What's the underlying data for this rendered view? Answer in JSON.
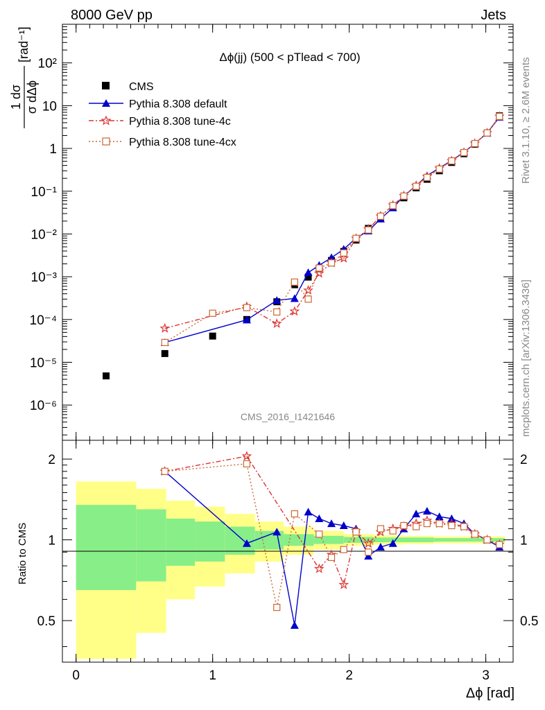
{
  "header": {
    "left": "8000 GeV pp",
    "right": "Jets"
  },
  "plot": {
    "title": "Δϕ(jj) (500 < pTlead < 700)",
    "watermark": "CMS_2016_I1421646",
    "side_top": "Rivet 3.1.10, ≥ 2.6M events",
    "side_bottom": "mcplots.cern.ch [arXiv:1306.3436]",
    "ylabel_top_num": "1 dσ",
    "ylabel_top_den": "σ dΔϕ",
    "ylabel_top_unit": "[rad⁻¹]",
    "ylabel_ratio": "Ratio to CMS",
    "xlabel": "Δϕ [rad]"
  },
  "legend": [
    {
      "label": "CMS",
      "color": "#000000",
      "marker": "square"
    },
    {
      "label": "Pythia 8.308 default",
      "color": "#0000cc",
      "marker": "triangle"
    },
    {
      "label": "Pythia 8.308 tune-4c",
      "color": "#dd3333",
      "marker": "star"
    },
    {
      "label": "Pythia 8.308 tune-4cx",
      "color": "#cc6633",
      "marker": "open-square"
    }
  ],
  "chart_data": {
    "type": "line",
    "title": "Δϕ(jj) (500 < pTlead < 700)",
    "xlabel": "Δϕ [rad]",
    "ylabel": "1/σ dσ/dΔϕ [rad⁻¹]",
    "xlim": [
      -0.1,
      3.2
    ],
    "ylim": [
      1.5e-07,
      800
    ],
    "yscale": "log",
    "xticks": [
      "0",
      "1",
      "2",
      "3"
    ],
    "yticks": [
      "10⁻⁶",
      "10⁻⁵",
      "10⁻⁴",
      "10⁻³",
      "10⁻²",
      "10⁻¹",
      "1",
      "10",
      "10²"
    ],
    "series": [
      {
        "name": "CMS",
        "color": "#000000",
        "x": [
          0.22,
          0.65,
          1.0,
          1.25,
          1.47,
          1.6,
          1.7,
          1.78,
          1.87,
          1.96,
          2.05,
          2.14,
          2.23,
          2.32,
          2.4,
          2.49,
          2.57,
          2.66,
          2.75,
          2.84,
          2.92,
          3.01,
          3.1
        ],
        "y": [
          4.8e-06,
          1.6e-05,
          4.1e-05,
          0.0001,
          0.00026,
          0.00065,
          0.00098,
          0.00155,
          0.0024,
          0.0039,
          0.0072,
          0.0135,
          0.024,
          0.042,
          0.07,
          0.12,
          0.19,
          0.3,
          0.47,
          0.75,
          1.25,
          2.3,
          5.8
        ]
      },
      {
        "name": "Pythia 8.308 default",
        "color": "#0000cc",
        "x": [
          0.65,
          1.25,
          1.47,
          1.6,
          1.7,
          1.78,
          1.87,
          1.96,
          2.05,
          2.14,
          2.23,
          2.32,
          2.4,
          2.49,
          2.57,
          2.66,
          2.75,
          2.84,
          2.92,
          3.01,
          3.1
        ],
        "y": [
          2.9e-05,
          9.8e-05,
          0.00028,
          0.00031,
          0.00125,
          0.00185,
          0.0028,
          0.0044,
          0.008,
          0.0118,
          0.0225,
          0.041,
          0.077,
          0.136,
          0.23,
          0.35,
          0.52,
          0.82,
          1.3,
          2.3,
          5.4
        ]
      },
      {
        "name": "Pythia 8.308 tune-4c",
        "color": "#dd3333",
        "x": [
          0.65,
          1.25,
          1.47,
          1.6,
          1.7,
          1.78,
          1.87,
          1.96,
          2.05,
          2.14,
          2.23,
          2.32,
          2.4,
          2.49,
          2.57,
          2.66,
          2.75,
          2.84,
          2.92,
          3.01,
          3.1
        ],
        "y": [
          6.2e-05,
          0.0002,
          8e-05,
          0.000155,
          0.00048,
          0.0012,
          0.0021,
          0.0027,
          0.0078,
          0.013,
          0.026,
          0.047,
          0.078,
          0.135,
          0.22,
          0.34,
          0.51,
          0.8,
          1.3,
          2.3,
          5.6
        ]
      },
      {
        "name": "Pythia 8.308 tune-4cx",
        "color": "#cc6633",
        "x": [
          0.65,
          1.0,
          1.25,
          1.47,
          1.6,
          1.7,
          1.78,
          1.87,
          1.96,
          2.05,
          2.14,
          2.23,
          2.32,
          2.4,
          2.49,
          2.57,
          2.66,
          2.75,
          2.84,
          2.92,
          3.01,
          3.1
        ],
        "y": [
          2.9e-05,
          0.00014,
          0.00019,
          0.00015,
          0.00075,
          0.0003,
          0.0016,
          0.0021,
          0.0036,
          0.0079,
          0.0124,
          0.026,
          0.046,
          0.077,
          0.13,
          0.21,
          0.33,
          0.51,
          0.8,
          1.3,
          2.3,
          5.6
        ]
      }
    ],
    "ratio": {
      "ylabel": "Ratio to CMS",
      "ylim": [
        0.35,
        2.35
      ],
      "yticks": [
        "0.5",
        "1",
        "2"
      ],
      "series": [
        {
          "name": "Pythia 8.308 default",
          "color": "#0000cc",
          "x": [
            0.65,
            1.25,
            1.47,
            1.6,
            1.7,
            1.78,
            1.87,
            1.96,
            2.05,
            2.14,
            2.23,
            2.32,
            2.4,
            2.49,
            2.57,
            2.66,
            2.75,
            2.84,
            2.92,
            3.01,
            3.1
          ],
          "y": [
            1.8,
            0.97,
            1.07,
            0.48,
            1.27,
            1.2,
            1.15,
            1.13,
            1.1,
            0.87,
            0.94,
            0.97,
            1.1,
            1.25,
            1.28,
            1.22,
            1.2,
            1.15,
            1.05,
            1.0,
            0.94
          ]
        },
        {
          "name": "Pythia 8.308 tune-4c",
          "color": "#dd3333",
          "x": [
            0.65,
            1.25,
            1.78,
            1.87,
            1.96,
            2.05,
            2.14,
            2.23,
            2.32,
            2.4,
            2.49,
            2.57,
            2.66,
            2.75,
            2.84,
            2.92,
            3.01,
            3.1
          ],
          "y": [
            1.8,
            2.05,
            0.78,
            0.88,
            0.68,
            1.08,
            0.97,
            1.07,
            1.1,
            1.12,
            1.15,
            1.18,
            1.15,
            1.15,
            1.12,
            1.05,
            1.0,
            0.96
          ]
        },
        {
          "name": "Pythia 8.308 tune-4cx",
          "color": "#cc6633",
          "x": [
            0.65,
            1.25,
            1.47,
            1.6,
            1.78,
            1.87,
            1.96,
            2.05,
            2.14,
            2.23,
            2.32,
            2.4,
            2.49,
            2.57,
            2.66,
            2.75,
            2.84,
            2.92,
            3.01,
            3.1
          ],
          "y": [
            1.8,
            1.92,
            0.56,
            1.25,
            1.05,
            0.86,
            0.92,
            1.07,
            0.9,
            1.1,
            1.08,
            1.13,
            1.12,
            1.15,
            1.15,
            1.13,
            1.12,
            1.05,
            1.0,
            0.96
          ]
        }
      ],
      "bands": {
        "edges": [
          0.0,
          0.44,
          0.66,
          0.87,
          1.09,
          1.31,
          1.52,
          1.74,
          1.96,
          2.18,
          2.4,
          2.62,
          2.84,
          3.14
        ],
        "inner": [
          0.35,
          0.3,
          0.2,
          0.17,
          0.12,
          0.08,
          0.05,
          0.035,
          0.025,
          0.02,
          0.02,
          0.015,
          0.015
        ],
        "outer": [
          0.65,
          0.55,
          0.4,
          0.33,
          0.25,
          0.17,
          0.12,
          0.08,
          0.05,
          0.04,
          0.035,
          0.03,
          0.03
        ]
      }
    }
  }
}
